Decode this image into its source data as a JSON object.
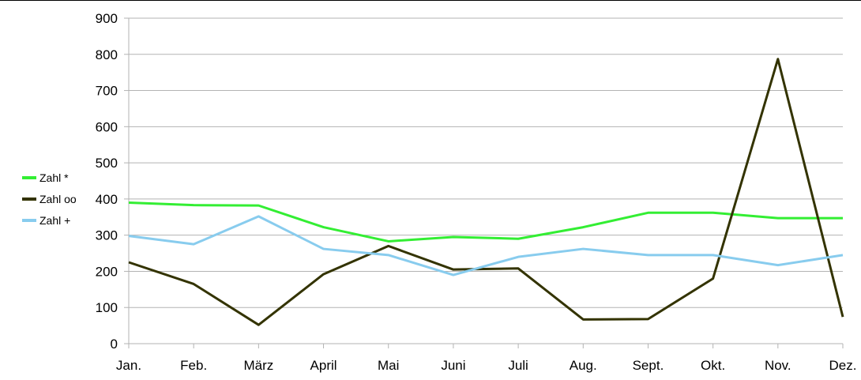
{
  "chart_data": {
    "type": "line",
    "categories": [
      "Jan.",
      "Feb.",
      "März",
      "April",
      "Mai",
      "Juni",
      "Juli",
      "Aug.",
      "Sept.",
      "Okt.",
      "Nov.",
      "Dez."
    ],
    "ylim": [
      0,
      900
    ],
    "yticks": [
      0,
      100,
      200,
      300,
      400,
      500,
      600,
      700,
      800,
      900
    ],
    "grid": true,
    "legend_position": "left",
    "series": [
      {
        "name": "Zahl *",
        "color": "#33ee33",
        "values": [
          390,
          383,
          382,
          322,
          283,
          295,
          290,
          322,
          362,
          362,
          347,
          347
        ]
      },
      {
        "name": "Zahl oo",
        "color": "#333300",
        "values": [
          225,
          165,
          52,
          192,
          270,
          205,
          208,
          67,
          68,
          180,
          787,
          74
        ]
      },
      {
        "name": "Zahl +",
        "color": "#88ccee",
        "values": [
          298,
          275,
          352,
          262,
          245,
          190,
          240,
          262,
          245,
          245,
          217,
          245
        ]
      }
    ]
  }
}
